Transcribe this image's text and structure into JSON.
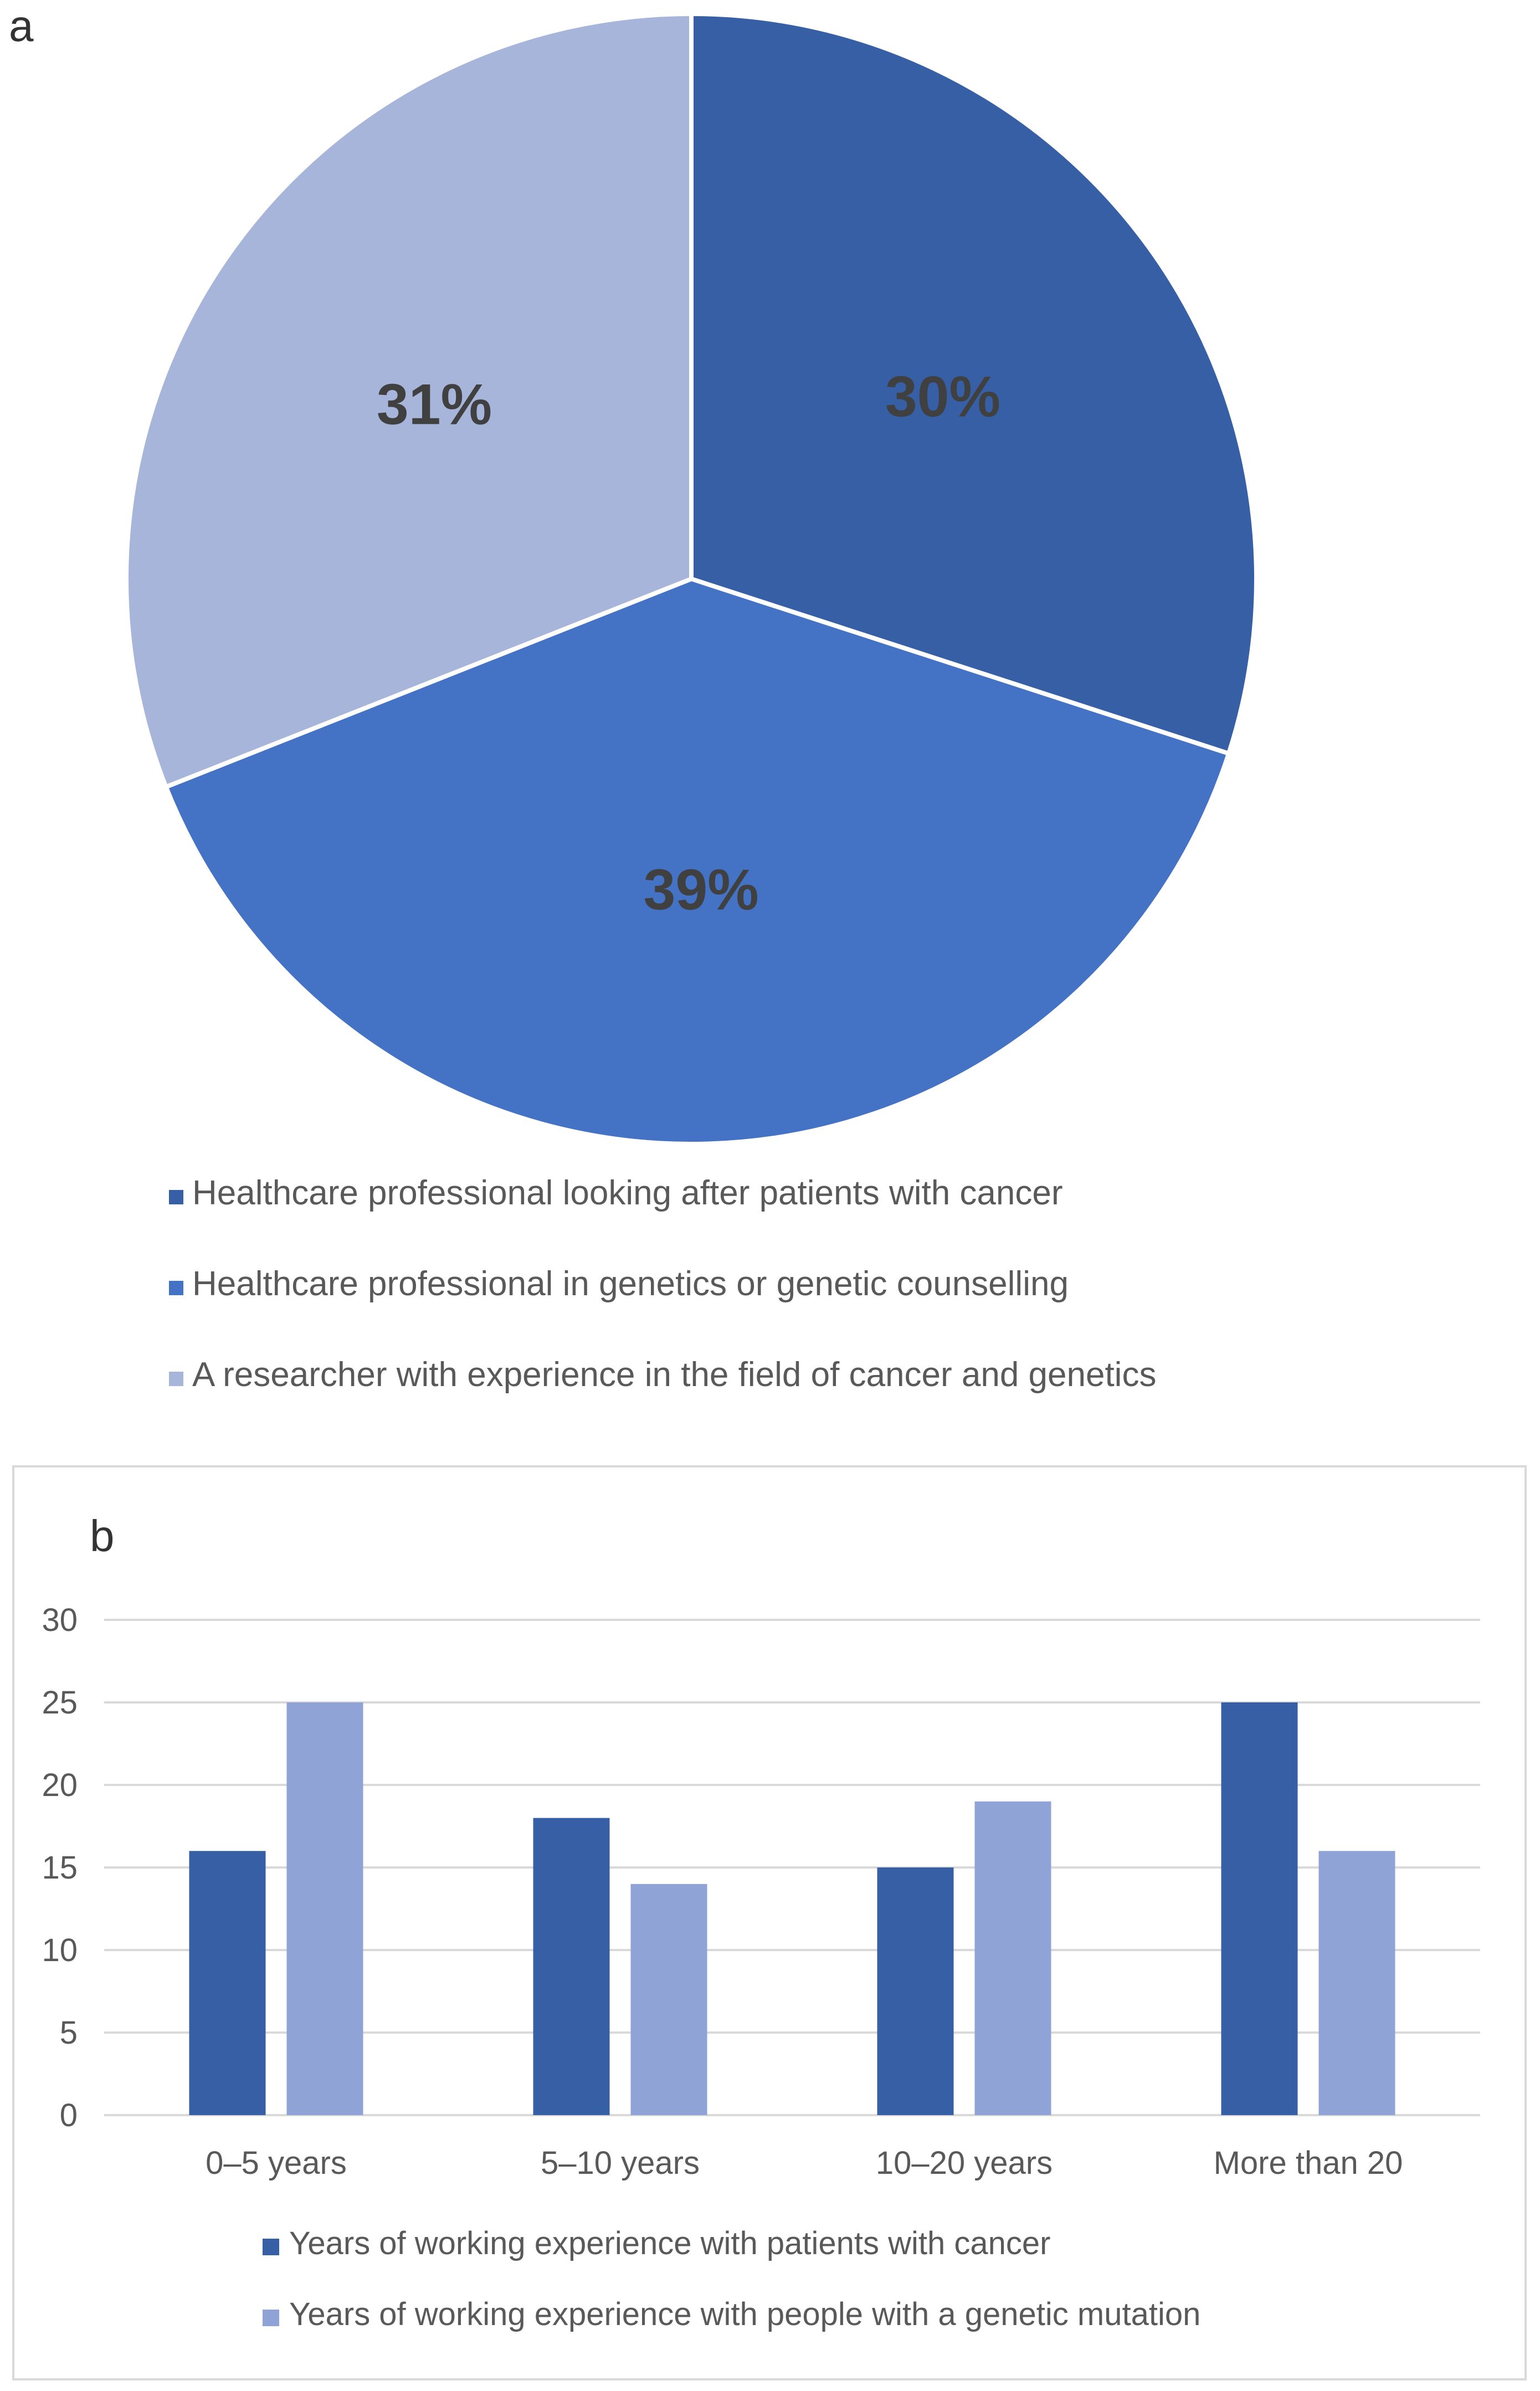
{
  "panels": {
    "a_label": "a",
    "b_label": "b"
  },
  "colors": {
    "dark_blue": "#375FA6",
    "mid_blue": "#4472C4",
    "light_blue": "#A8B5DB",
    "bar_light": "#8FA3D6",
    "gridline": "#D9D9D9",
    "axis_text": "#595959",
    "slice_label_text": "#404040",
    "frame": "#D9D9D9"
  },
  "chart_data": [
    {
      "type": "pie",
      "panel": "a",
      "title": "",
      "slices": [
        {
          "label": "Healthcare professional looking after patients with cancer",
          "value": 30,
          "display": "30%",
          "color": "#375FA6"
        },
        {
          "label": "Healthcare professional in genetics or genetic counselling",
          "value": 39,
          "display": "39%",
          "color": "#4472C4"
        },
        {
          "label": "A researcher with experience in the field of cancer and genetics",
          "value": 31,
          "display": "31%",
          "color": "#A8B5DB"
        }
      ],
      "legend_position": "bottom"
    },
    {
      "type": "bar",
      "panel": "b",
      "title": "",
      "categories": [
        "0–5 years",
        "5–10 years",
        "10–20 years",
        "More than 20"
      ],
      "series": [
        {
          "name": "Years of working experience with patients with cancer",
          "values": [
            16,
            18,
            15,
            25
          ],
          "color": "#375FA6"
        },
        {
          "name": "Years of working experience with people with a genetic mutation",
          "values": [
            25,
            14,
            19,
            16
          ],
          "color": "#8FA3D6"
        }
      ],
      "ylim": [
        0,
        30
      ],
      "yticks": [
        "0",
        "5",
        "10",
        "15",
        "20",
        "25",
        "30"
      ],
      "xlabel": "",
      "ylabel": "",
      "grid": true,
      "legend_position": "bottom"
    }
  ]
}
